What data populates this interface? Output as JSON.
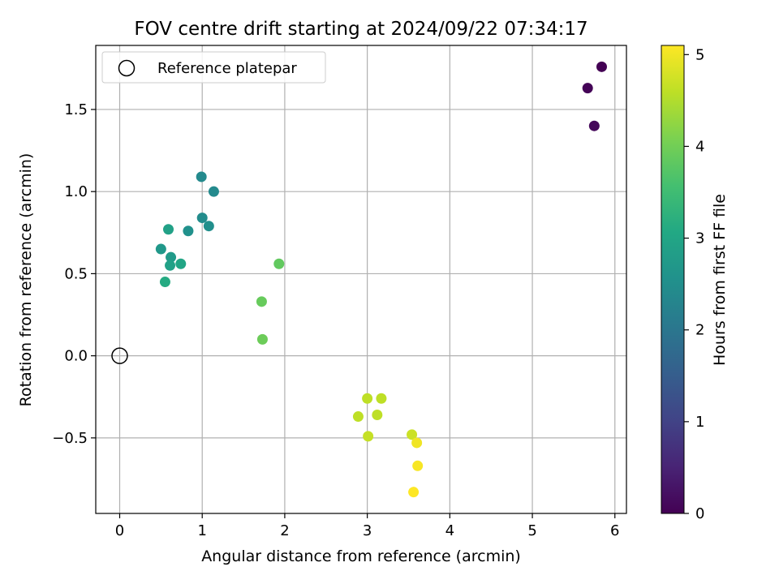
{
  "chart_data": {
    "type": "scatter",
    "title": "FOV centre drift starting at 2024/09/22 07:34:17",
    "xlabel": "Angular distance from reference (arcmin)",
    "ylabel": "Rotation from reference (arcmin)",
    "xlim": [
      -0.29,
      6.14
    ],
    "ylim": [
      -0.96,
      1.89
    ],
    "xticks": [
      0,
      1,
      2,
      3,
      4,
      5,
      6
    ],
    "yticks": [
      -0.5,
      0.0,
      0.5,
      1.0,
      1.5
    ],
    "ytick_labels": [
      "−0.5",
      "0.0",
      "0.5",
      "1.0",
      "1.5"
    ],
    "grid": true,
    "legend": {
      "position": "top-left",
      "entries": [
        "Reference platepar"
      ]
    },
    "reference_point": {
      "x": 0.0,
      "y": 0.0
    },
    "colorbar": {
      "label": "Hours from first FF file",
      "range": [
        0,
        5.1
      ],
      "ticks": [
        0,
        1,
        2,
        3,
        4,
        5
      ],
      "colormap": "viridis"
    },
    "points": [
      {
        "x": 5.84,
        "y": 1.76,
        "hours": 0.0
      },
      {
        "x": 5.67,
        "y": 1.63,
        "hours": 0.05
      },
      {
        "x": 5.75,
        "y": 1.4,
        "hours": 0.1
      },
      {
        "x": 0.99,
        "y": 1.09,
        "hours": 2.4
      },
      {
        "x": 1.14,
        "y": 1.0,
        "hours": 2.4
      },
      {
        "x": 1.0,
        "y": 0.84,
        "hours": 2.45
      },
      {
        "x": 1.08,
        "y": 0.79,
        "hours": 2.5
      },
      {
        "x": 0.83,
        "y": 0.76,
        "hours": 2.55
      },
      {
        "x": 0.59,
        "y": 0.77,
        "hours": 2.9
      },
      {
        "x": 0.5,
        "y": 0.65,
        "hours": 2.7
      },
      {
        "x": 0.62,
        "y": 0.6,
        "hours": 2.75
      },
      {
        "x": 0.61,
        "y": 0.55,
        "hours": 2.9
      },
      {
        "x": 0.74,
        "y": 0.56,
        "hours": 3.0
      },
      {
        "x": 0.55,
        "y": 0.45,
        "hours": 3.1
      },
      {
        "x": 1.93,
        "y": 0.56,
        "hours": 3.85
      },
      {
        "x": 1.72,
        "y": 0.33,
        "hours": 3.9
      },
      {
        "x": 1.73,
        "y": 0.1,
        "hours": 3.95
      },
      {
        "x": 3.0,
        "y": -0.26,
        "hours": 4.6
      },
      {
        "x": 3.17,
        "y": -0.26,
        "hours": 4.6
      },
      {
        "x": 2.89,
        "y": -0.37,
        "hours": 4.6
      },
      {
        "x": 3.12,
        "y": -0.36,
        "hours": 4.6
      },
      {
        "x": 3.01,
        "y": -0.49,
        "hours": 4.65
      },
      {
        "x": 3.54,
        "y": -0.48,
        "hours": 4.7
      },
      {
        "x": 3.6,
        "y": -0.53,
        "hours": 5.0
      },
      {
        "x": 3.61,
        "y": -0.67,
        "hours": 5.05
      },
      {
        "x": 3.56,
        "y": -0.83,
        "hours": 5.1
      }
    ]
  }
}
